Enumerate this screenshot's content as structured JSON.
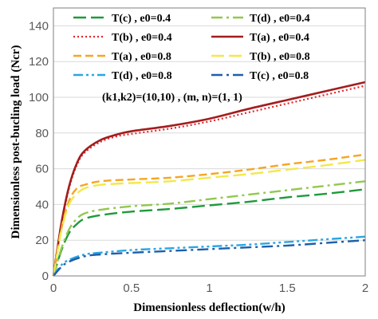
{
  "chart_data": {
    "type": "line",
    "title": "",
    "xlabel": "Dimensionless deflection(w/h)",
    "ylabel": "Dimensionless post-bucling load (Ncr)",
    "xlim": [
      0,
      2
    ],
    "ylim": [
      0,
      150
    ],
    "xticks": [
      0,
      0.5,
      1,
      1.5,
      2
    ],
    "xtick_labels": [
      "0",
      "0.5",
      "1",
      "1.5",
      "2"
    ],
    "yticks": [
      0,
      20,
      40,
      60,
      80,
      100,
      120,
      140
    ],
    "ytick_labels": [
      "0",
      "20",
      "40",
      "60",
      "80",
      "100",
      "120",
      "140"
    ],
    "grid": "horizontal",
    "legend_position": "top-left inside, two columns",
    "annotation": "(k1,k2)=(10,10) , (m, n)=(1, 1)",
    "series": [
      {
        "name": "T(c) , e0=0.4",
        "color": "#1f9a3c",
        "dash": "long-dash",
        "x": [
          0,
          0.05,
          0.1,
          0.15,
          0.2,
          0.3,
          0.5,
          0.75,
          1,
          1.25,
          1.5,
          1.75,
          2
        ],
        "y": [
          0,
          14,
          24,
          29,
          32,
          34,
          36,
          37.5,
          39.5,
          41.5,
          44,
          46,
          48.5
        ]
      },
      {
        "name": "T(d) , e0=0.4",
        "color": "#92c84f",
        "dash": "dash-dot",
        "x": [
          0,
          0.05,
          0.1,
          0.15,
          0.2,
          0.3,
          0.5,
          0.75,
          1,
          1.25,
          1.5,
          1.75,
          2
        ],
        "y": [
          0,
          15,
          26,
          32,
          35,
          37,
          39,
          40.5,
          43,
          45.5,
          48,
          50.5,
          53
        ]
      },
      {
        "name": "T(b) , e0=0.4",
        "color": "#e0262b",
        "dash": "dotted",
        "x": [
          0,
          0.05,
          0.1,
          0.15,
          0.2,
          0.3,
          0.4,
          0.5,
          0.75,
          1,
          1.25,
          1.5,
          1.75,
          2
        ],
        "y": [
          0,
          28,
          49,
          62,
          69,
          75,
          78,
          79.5,
          82.5,
          86.5,
          91.5,
          96.5,
          101.5,
          106.5
        ]
      },
      {
        "name": "T(a) , e0=0.4",
        "color": "#a31d1d",
        "dash": "solid",
        "x": [
          0,
          0.05,
          0.1,
          0.15,
          0.2,
          0.3,
          0.4,
          0.5,
          0.75,
          1,
          1.25,
          1.5,
          1.75,
          2
        ],
        "y": [
          0,
          29,
          50,
          63,
          70,
          76,
          79,
          81,
          84,
          88,
          93.5,
          98.5,
          103.5,
          108.5
        ]
      },
      {
        "name": "T(a) , e0=0.8",
        "color": "#f5a623",
        "dash": "dash",
        "x": [
          0,
          0.05,
          0.1,
          0.15,
          0.2,
          0.3,
          0.5,
          0.75,
          1,
          1.25,
          1.5,
          1.75,
          2
        ],
        "y": [
          0,
          26,
          42,
          49,
          51,
          53,
          54,
          55,
          57,
          59.5,
          62.5,
          65,
          68
        ]
      },
      {
        "name": "T(b) , e0=0.8",
        "color": "#f3e84a",
        "dash": "long-dash",
        "x": [
          0,
          0.05,
          0.1,
          0.15,
          0.2,
          0.3,
          0.5,
          0.75,
          1,
          1.25,
          1.5,
          1.75,
          2
        ],
        "y": [
          0,
          25,
          40,
          46,
          49,
          51,
          52,
          53,
          55,
          57,
          59.5,
          62,
          65
        ]
      },
      {
        "name": "T(d) , e0=0.8",
        "color": "#2aa6e2",
        "dash": "dash-dot-dot",
        "x": [
          0,
          0.05,
          0.1,
          0.2,
          0.3,
          0.5,
          0.75,
          1,
          1.25,
          1.5,
          1.75,
          2
        ],
        "y": [
          0,
          6,
          9,
          12,
          13,
          14.5,
          15.5,
          16.5,
          17.5,
          19,
          20.5,
          22
        ]
      },
      {
        "name": "T(c) , e0=0.8",
        "color": "#1f5fa8",
        "dash": "dash-dot",
        "x": [
          0,
          0.05,
          0.1,
          0.2,
          0.3,
          0.5,
          0.75,
          1,
          1.25,
          1.5,
          1.75,
          2
        ],
        "y": [
          0,
          5,
          8,
          11,
          12,
          13,
          14,
          15,
          16,
          17,
          18.5,
          20
        ]
      }
    ],
    "legend_order": [
      0,
      1,
      2,
      3,
      4,
      5,
      6,
      7
    ]
  }
}
